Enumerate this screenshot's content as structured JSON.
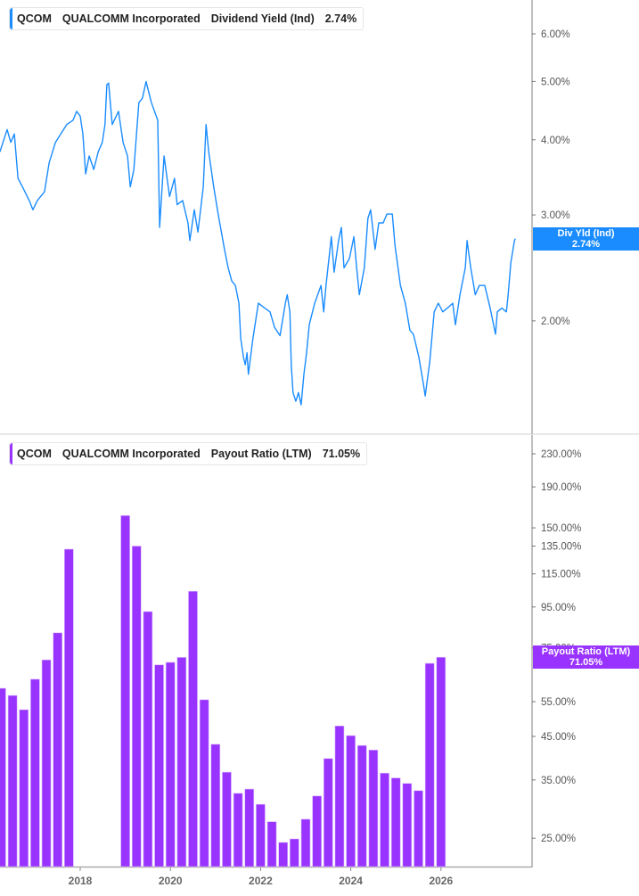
{
  "colors": {
    "yield": "#1a8cff",
    "payout": "#9933ff",
    "axis": "#aaaaaa"
  },
  "top_legend": {
    "ticker": "QCOM",
    "company": "QUALCOMM Incorporated",
    "metric": "Dividend Yield (Ind)",
    "value": "2.74%"
  },
  "top_tag": {
    "label": "Div Yld (Ind)",
    "value": "2.74%"
  },
  "bottom_legend": {
    "ticker": "QCOM",
    "company": "QUALCOMM Incorporated",
    "metric": "Payout Ratio (LTM)",
    "value": "71.05%"
  },
  "bottom_tag": {
    "label": "Payout Ratio (LTM)",
    "value": "71.05%"
  },
  "chart_data": [
    {
      "type": "line",
      "title": "QCOM Dividend Yield (Ind)",
      "yscale": "log",
      "ylim": [
        1.4,
        6.6
      ],
      "ytick_values": [
        6,
        5,
        4,
        3,
        2
      ],
      "ytick_labels": [
        "6.00%",
        "5.00%",
        "4.00%",
        "3.00%",
        "2.00%"
      ],
      "series": [
        {
          "name": "Dividend Yield (Ind)",
          "points": [
            [
              2016.22,
              3.82
            ],
            [
              2016.38,
              4.16
            ],
            [
              2016.46,
              3.96
            ],
            [
              2016.54,
              4.09
            ],
            [
              2016.62,
              3.45
            ],
            [
              2016.72,
              3.34
            ],
            [
              2016.87,
              3.17
            ],
            [
              2016.95,
              3.06
            ],
            [
              2017.05,
              3.17
            ],
            [
              2017.21,
              3.28
            ],
            [
              2017.31,
              3.66
            ],
            [
              2017.45,
              3.96
            ],
            [
              2017.57,
              4.09
            ],
            [
              2017.7,
              4.24
            ],
            [
              2017.84,
              4.31
            ],
            [
              2017.92,
              4.46
            ],
            [
              2018.0,
              4.38
            ],
            [
              2018.06,
              4.09
            ],
            [
              2018.12,
              3.51
            ],
            [
              2018.2,
              3.76
            ],
            [
              2018.3,
              3.57
            ],
            [
              2018.4,
              3.82
            ],
            [
              2018.49,
              3.96
            ],
            [
              2018.55,
              4.24
            ],
            [
              2018.59,
              4.94
            ],
            [
              2018.63,
              4.97
            ],
            [
              2018.71,
              4.24
            ],
            [
              2018.85,
              4.46
            ],
            [
              2018.95,
              3.96
            ],
            [
              2019.05,
              3.76
            ],
            [
              2019.11,
              3.34
            ],
            [
              2019.19,
              3.57
            ],
            [
              2019.3,
              4.61
            ],
            [
              2019.38,
              4.69
            ],
            [
              2019.46,
              5.0
            ],
            [
              2019.58,
              4.61
            ],
            [
              2019.72,
              4.31
            ],
            [
              2019.76,
              2.86
            ],
            [
              2019.86,
              3.76
            ],
            [
              2019.98,
              3.22
            ],
            [
              2020.09,
              3.45
            ],
            [
              2020.15,
              3.12
            ],
            [
              2020.27,
              3.17
            ],
            [
              2020.39,
              2.91
            ],
            [
              2020.43,
              2.72
            ],
            [
              2020.53,
              3.06
            ],
            [
              2020.61,
              2.81
            ],
            [
              2020.73,
              3.34
            ],
            [
              2020.79,
              4.24
            ],
            [
              2020.85,
              3.82
            ],
            [
              2020.96,
              3.34
            ],
            [
              2021.06,
              3.01
            ],
            [
              2021.2,
              2.63
            ],
            [
              2021.28,
              2.45
            ],
            [
              2021.36,
              2.33
            ],
            [
              2021.44,
              2.29
            ],
            [
              2021.52,
              2.14
            ],
            [
              2021.56,
              1.87
            ],
            [
              2021.62,
              1.74
            ],
            [
              2021.66,
              1.69
            ],
            [
              2021.7,
              1.77
            ],
            [
              2021.73,
              1.63
            ],
            [
              2021.83,
              1.87
            ],
            [
              2021.95,
              2.14
            ],
            [
              2022.09,
              2.1
            ],
            [
              2022.21,
              2.07
            ],
            [
              2022.31,
              1.95
            ],
            [
              2022.43,
              1.89
            ],
            [
              2022.55,
              2.14
            ],
            [
              2022.59,
              2.21
            ],
            [
              2022.65,
              2.07
            ],
            [
              2022.68,
              1.69
            ],
            [
              2022.72,
              1.52
            ],
            [
              2022.78,
              1.47
            ],
            [
              2022.84,
              1.52
            ],
            [
              2022.9,
              1.45
            ],
            [
              2022.96,
              1.63
            ],
            [
              2023.02,
              1.77
            ],
            [
              2023.08,
              1.97
            ],
            [
              2023.2,
              2.14
            ],
            [
              2023.34,
              2.29
            ],
            [
              2023.4,
              2.07
            ],
            [
              2023.45,
              2.29
            ],
            [
              2023.57,
              2.76
            ],
            [
              2023.63,
              2.41
            ],
            [
              2023.73,
              2.72
            ],
            [
              2023.79,
              2.86
            ],
            [
              2023.85,
              2.45
            ],
            [
              2023.97,
              2.54
            ],
            [
              2024.07,
              2.76
            ],
            [
              2024.13,
              2.45
            ],
            [
              2024.19,
              2.21
            ],
            [
              2024.3,
              2.45
            ],
            [
              2024.38,
              2.96
            ],
            [
              2024.44,
              3.06
            ],
            [
              2024.54,
              2.63
            ],
            [
              2024.62,
              2.91
            ],
            [
              2024.72,
              2.91
            ],
            [
              2024.8,
              3.01
            ],
            [
              2024.92,
              3.01
            ],
            [
              2024.98,
              2.67
            ],
            [
              2025.1,
              2.29
            ],
            [
              2025.21,
              2.14
            ],
            [
              2025.31,
              1.93
            ],
            [
              2025.39,
              1.9
            ],
            [
              2025.51,
              1.74
            ],
            [
              2025.61,
              1.57
            ],
            [
              2025.65,
              1.5
            ],
            [
              2025.75,
              1.71
            ],
            [
              2025.85,
              2.07
            ],
            [
              2025.94,
              2.14
            ],
            [
              2026.04,
              2.07
            ],
            [
              2026.14,
              2.1
            ],
            [
              2026.26,
              2.14
            ],
            [
              2026.32,
              1.97
            ],
            [
              2026.42,
              2.21
            ],
            [
              2026.54,
              2.45
            ],
            [
              2026.58,
              2.72
            ],
            [
              2026.66,
              2.45
            ],
            [
              2026.76,
              2.21
            ],
            [
              2026.85,
              2.29
            ],
            [
              2026.97,
              2.29
            ],
            [
              2027.09,
              2.1
            ],
            [
              2027.21,
              1.9
            ],
            [
              2027.25,
              2.07
            ],
            [
              2027.35,
              2.1
            ],
            [
              2027.45,
              2.07
            ],
            [
              2027.49,
              2.21
            ],
            [
              2027.55,
              2.5
            ],
            [
              2027.63,
              2.72
            ],
            [
              2027.65,
              2.74
            ]
          ]
        }
      ]
    },
    {
      "type": "bar",
      "title": "QCOM Payout Ratio (LTM)",
      "yscale": "log",
      "ytick_values": [
        230,
        190,
        150,
        135,
        115,
        95,
        75,
        55,
        45,
        35,
        25
      ],
      "ytick_labels": [
        "230.00%",
        "190.00%",
        "150.00%",
        "135.00%",
        "115.00%",
        "95.00%",
        "75.00%",
        "55.00%",
        "45.00%",
        "35.00%",
        "25.00%"
      ],
      "xtick_values": [
        2018,
        2020,
        2022,
        2024,
        2026
      ],
      "xtick_labels": [
        "2018",
        "2020",
        "2022",
        "2024",
        "2026"
      ],
      "x": [
        2016.25,
        2016.5,
        2016.75,
        2017.0,
        2017.25,
        2017.5,
        2017.75,
        2019.0,
        2019.25,
        2019.5,
        2019.75,
        2020.0,
        2020.25,
        2020.5,
        2020.75,
        2021.0,
        2021.25,
        2021.5,
        2021.75,
        2022.0,
        2022.25,
        2022.5,
        2022.75,
        2023.0,
        2023.25,
        2023.5,
        2023.75,
        2024.0,
        2024.25,
        2024.5,
        2024.75,
        2025.0,
        2025.25,
        2025.5,
        2025.75,
        2026.0
      ],
      "values": [
        59.4,
        57,
        52.5,
        62.6,
        70,
        81.8,
        132.6,
        161,
        135,
        92.5,
        68,
        69,
        71,
        104,
        55.6,
        43,
        36.6,
        32.4,
        33.2,
        30.4,
        27.5,
        24.4,
        24.9,
        27.9,
        31.9,
        39.6,
        47.8,
        45.2,
        42.7,
        41.6,
        36.4,
        35.4,
        34.3,
        32.9,
        68.6,
        71.05
      ]
    }
  ]
}
